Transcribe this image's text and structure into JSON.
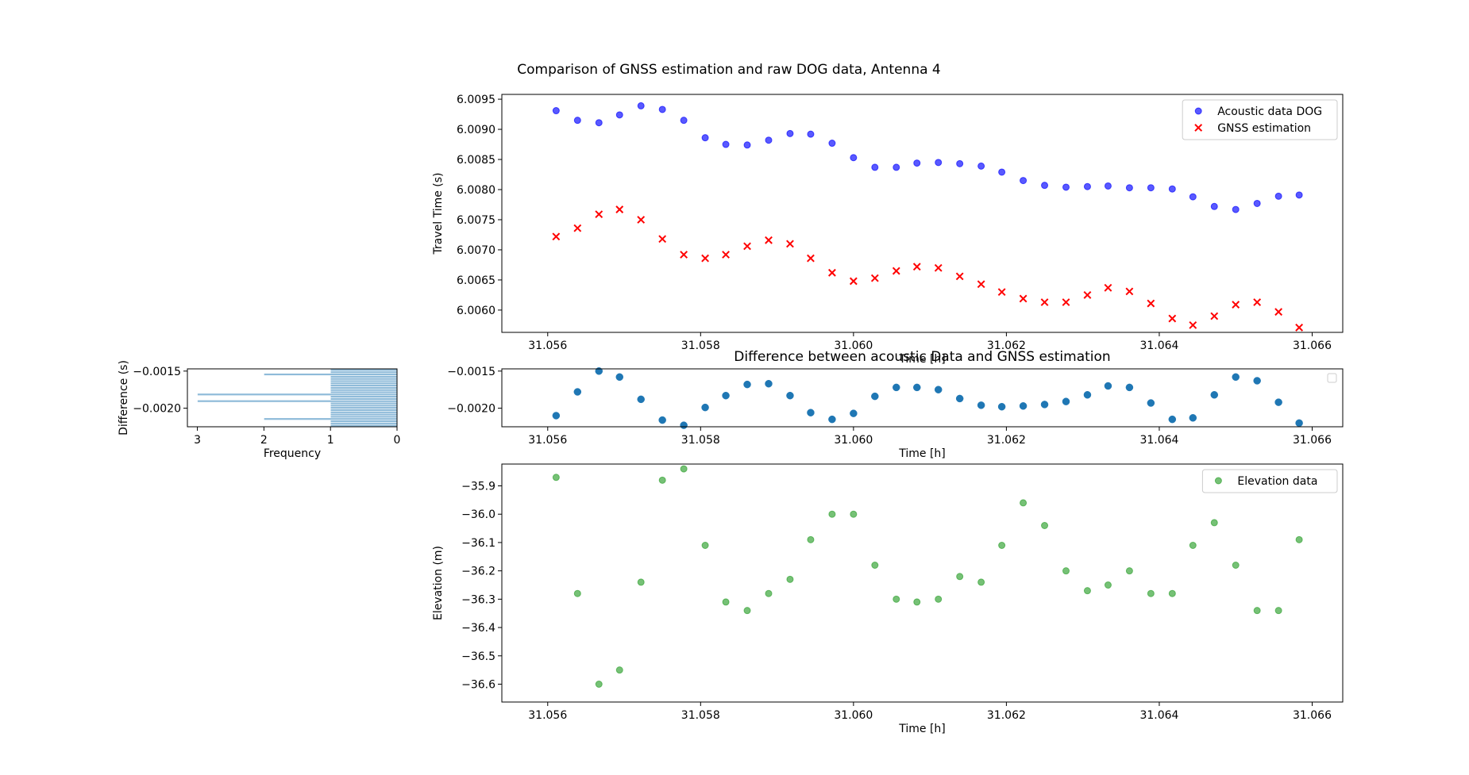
{
  "chart_data": [
    {
      "id": "travel",
      "type": "scatter",
      "title": "Comparison of GNSS estimation and raw DOG data, Antenna 4",
      "xlabel": "Time [h]",
      "ylabel": "Travel Time (s)",
      "xlim": [
        31.0554,
        31.0664
      ],
      "ylim": [
        6.00563,
        6.00958
      ],
      "xticks": [
        31.056,
        31.058,
        31.06,
        31.062,
        31.064,
        31.066
      ],
      "xtick_labels": [
        "31.056",
        "31.058",
        "31.060",
        "31.062",
        "31.064",
        "31.066"
      ],
      "yticks": [
        6.006,
        6.0065,
        6.007,
        6.0075,
        6.008,
        6.0085,
        6.009,
        6.0095
      ],
      "ytick_labels": [
        "6.0060",
        "6.0065",
        "6.0070",
        "6.0075",
        "6.0080",
        "6.0085",
        "6.0090",
        "6.0095"
      ],
      "legend_position": "upper right",
      "x": [
        31.05611,
        31.05639,
        31.05667,
        31.05694,
        31.05722,
        31.0575,
        31.05778,
        31.05806,
        31.05833,
        31.05861,
        31.05889,
        31.05917,
        31.05944,
        31.05972,
        31.06,
        31.06028,
        31.06056,
        31.06083,
        31.06111,
        31.06139,
        31.06167,
        31.06194,
        31.06222,
        31.0625,
        31.06278,
        31.06306,
        31.06333,
        31.06361,
        31.06389,
        31.06417,
        31.06444,
        31.06472,
        31.065,
        31.06528,
        31.06556,
        31.06583
      ],
      "series": [
        {
          "name": "Acoustic data DOG",
          "marker": "circle",
          "color": "#0000ff",
          "values": [
            6.00931,
            6.00915,
            6.00911,
            6.00924,
            6.00939,
            6.00933,
            6.00915,
            6.00886,
            6.00875,
            6.00874,
            6.00882,
            6.00893,
            6.00892,
            6.00877,
            6.00853,
            6.00837,
            6.00837,
            6.00844,
            6.00845,
            6.00843,
            6.00839,
            6.00829,
            6.00815,
            6.00807,
            6.00804,
            6.00805,
            6.00806,
            6.00803,
            6.00803,
            6.00801,
            6.00788,
            6.00772,
            6.00767,
            6.00777,
            6.00789,
            6.00791
          ]
        },
        {
          "name": "GNSS estimation",
          "marker": "x",
          "color": "#ff0000",
          "values": [
            6.00722,
            6.00736,
            6.00759,
            6.00767,
            6.0075,
            6.00718,
            6.00692,
            6.00686,
            6.00692,
            6.00706,
            6.00716,
            6.0071,
            6.00686,
            6.00662,
            6.00648,
            6.00653,
            6.00665,
            6.00672,
            6.0067,
            6.00656,
            6.00643,
            6.0063,
            6.00619,
            6.00613,
            6.00613,
            6.00625,
            6.00637,
            6.00631,
            6.00611,
            6.00586,
            6.00575,
            6.0059,
            6.00609,
            6.00613,
            6.00597,
            6.00571
          ]
        }
      ]
    },
    {
      "id": "hist",
      "type": "bar",
      "orientation": "horizontal",
      "xlabel": "Frequency",
      "ylabel": "Difference (s)",
      "xlim": [
        3.15,
        0
      ],
      "ylim": [
        -0.00225,
        -0.00147
      ],
      "xticks": [
        3,
        2,
        1,
        0
      ],
      "xtick_labels": [
        "3",
        "2",
        "1",
        "0"
      ],
      "yticks": [
        -0.0015,
        -0.002
      ],
      "ytick_labels": [
        "−0.0015",
        "−0.0020"
      ],
      "color": "#1f77b4",
      "bin_edges": [
        -0.00225,
        -0.00222,
        -0.00219,
        -0.00216,
        -0.00213,
        -0.0021,
        -0.00207,
        -0.00204,
        -0.00201,
        -0.00198,
        -0.00195,
        -0.00192,
        -0.00189,
        -0.00186,
        -0.00183,
        -0.0018,
        -0.00177,
        -0.00174,
        -0.00171,
        -0.00168,
        -0.00165,
        -0.00162,
        -0.00159,
        -0.00156,
        -0.00153,
        -0.0015,
        -0.00147
      ],
      "counts": [
        1,
        1,
        1,
        2,
        1,
        1,
        1,
        1,
        1,
        1,
        1,
        3,
        1,
        1,
        3,
        1,
        1,
        1,
        1,
        1,
        1,
        1,
        1,
        2,
        1,
        1
      ]
    },
    {
      "id": "diff",
      "type": "scatter",
      "title": "Difference between acoustic Data and GNSS estimation",
      "xlabel": "Time [h]",
      "ylabel": "",
      "xlim": [
        31.0554,
        31.0664
      ],
      "ylim": [
        -0.00225,
        -0.00147
      ],
      "xticks": [
        31.056,
        31.058,
        31.06,
        31.062,
        31.064,
        31.066
      ],
      "xtick_labels": [
        "31.056",
        "31.058",
        "31.060",
        "31.062",
        "31.064",
        "31.066"
      ],
      "yticks": [
        -0.0015,
        -0.002
      ],
      "ytick_labels": [
        "−0.0015",
        "−0.0020"
      ],
      "legend_position": "upper right",
      "color": "#1f77b4",
      "x": [
        31.05611,
        31.05639,
        31.05667,
        31.05694,
        31.05722,
        31.0575,
        31.05778,
        31.05806,
        31.05833,
        31.05861,
        31.05889,
        31.05917,
        31.05944,
        31.05972,
        31.06,
        31.06028,
        31.06056,
        31.06083,
        31.06111,
        31.06139,
        31.06167,
        31.06194,
        31.06222,
        31.0625,
        31.06278,
        31.06306,
        31.06333,
        31.06361,
        31.06389,
        31.06417,
        31.06444,
        31.06472,
        31.065,
        31.06528,
        31.06556,
        31.06583
      ],
      "values": [
        -0.0021,
        -0.00178,
        -0.0015,
        -0.00158,
        -0.00188,
        -0.00216,
        -0.00223,
        -0.00199,
        -0.00183,
        -0.00168,
        -0.00167,
        -0.00183,
        -0.00206,
        -0.00215,
        -0.00207,
        -0.00184,
        -0.00172,
        -0.00172,
        -0.00175,
        -0.00187,
        -0.00196,
        -0.00198,
        -0.00197,
        -0.00195,
        -0.00191,
        -0.00182,
        -0.0017,
        -0.00172,
        -0.00193,
        -0.00215,
        -0.00213,
        -0.00182,
        -0.00158,
        -0.00163,
        -0.00192,
        -0.0022
      ]
    },
    {
      "id": "elev",
      "type": "scatter",
      "xlabel": "Time [h]",
      "ylabel": "Elevation (m)",
      "xlim": [
        31.0554,
        31.0664
      ],
      "ylim": [
        -36.663,
        -35.823
      ],
      "xticks": [
        31.056,
        31.058,
        31.06,
        31.062,
        31.064,
        31.066
      ],
      "xtick_labels": [
        "31.056",
        "31.058",
        "31.060",
        "31.062",
        "31.064",
        "31.066"
      ],
      "yticks": [
        -36.6,
        -36.5,
        -36.4,
        -36.3,
        -36.2,
        -36.1,
        -36.0,
        -35.9
      ],
      "ytick_labels": [
        "−36.6",
        "−36.5",
        "−36.4",
        "−36.3",
        "−36.2",
        "−36.1",
        "−36.0",
        "−35.9"
      ],
      "legend_position": "upper right",
      "series": [
        {
          "name": "Elevation data",
          "marker": "circle",
          "color": "#2ca02c",
          "x": [
            31.05611,
            31.05639,
            31.05667,
            31.05694,
            31.05722,
            31.0575,
            31.05778,
            31.05806,
            31.05833,
            31.05861,
            31.05889,
            31.05917,
            31.05944,
            31.05972,
            31.06,
            31.06028,
            31.06056,
            31.06083,
            31.06111,
            31.06139,
            31.06167,
            31.06194,
            31.06222,
            31.0625,
            31.06278,
            31.06306,
            31.06333,
            31.06361,
            31.06389,
            31.06417,
            31.06444,
            31.06472,
            31.065,
            31.06528,
            31.06556,
            31.06583
          ],
          "values": [
            -35.87,
            -36.28,
            -36.6,
            -36.55,
            -36.24,
            -35.88,
            -35.84,
            -36.11,
            -36.31,
            -36.34,
            -36.28,
            -36.23,
            -36.09,
            -36.0,
            -36.0,
            -36.18,
            -36.3,
            -36.31,
            -36.3,
            -36.22,
            -36.24,
            -36.11,
            -35.96,
            -36.04,
            -36.2,
            -36.27,
            -36.25,
            -36.2,
            -36.28,
            -36.28,
            -36.11,
            -36.03,
            -36.18,
            -36.34,
            -36.34,
            -36.09
          ]
        }
      ]
    }
  ]
}
